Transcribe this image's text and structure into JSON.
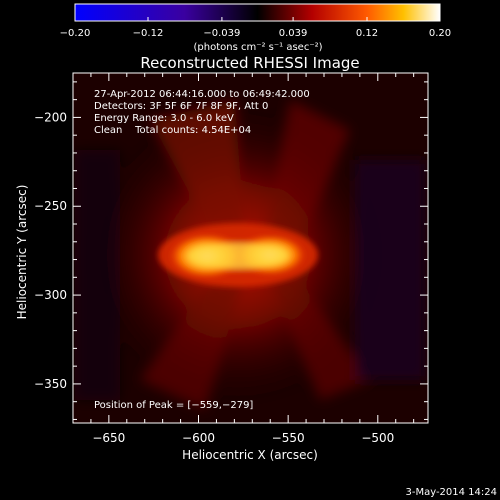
{
  "chart_data": {
    "type": "heatmap",
    "title": "Reconstructed RHESSI Image",
    "xlabel": "Heliocentric X (arcsec)",
    "ylabel": "Heliocentric Y (arcsec)",
    "xlim": [
      -670,
      -472
    ],
    "ylim": [
      -372,
      -175
    ],
    "xticks": [
      -650,
      -600,
      -550,
      -500
    ],
    "yticks": [
      -200,
      -250,
      -300,
      -350
    ],
    "xtick_labels": [
      "−650",
      "−600",
      "−550",
      "−500"
    ],
    "ytick_labels": [
      "−200",
      "−250",
      "−300",
      "−350"
    ],
    "colorbar": {
      "min": -0.2,
      "max": 0.2,
      "tick_labels": [
        "−0.20",
        "−0.12",
        "−0.039",
        "0.039",
        "0.12",
        "0.20"
      ],
      "ticks": [
        -0.2,
        -0.12,
        -0.039,
        0.039,
        0.12,
        0.2
      ],
      "unit_label": "(photons cm⁻² s⁻¹ asec⁻²)",
      "colormap": [
        "#0000ff",
        "#5a00b4",
        "#000000",
        "#b40000",
        "#ff5a00",
        "#ffc000",
        "#ffffff"
      ]
    },
    "annotations": [
      "27-Apr-2012 06:44:16.000 to 06:49:42.000",
      "Detectors: 3F 5F 6F 7F 8F 9F, Att 0",
      "Energy Range: 3.0 - 6.0 keV",
      "Clean    Total counts: 4.54E+04"
    ],
    "peak_label": "Position of Peak = [−559,−279]",
    "peak": {
      "x": -559,
      "y": -279
    },
    "sources": [
      {
        "x": -600,
        "y": -279,
        "value": 0.2
      },
      {
        "x": -560,
        "y": -279,
        "value": 0.2
      }
    ],
    "grid": false
  },
  "footer": {
    "timestamp": "3-May-2014 14:24"
  }
}
